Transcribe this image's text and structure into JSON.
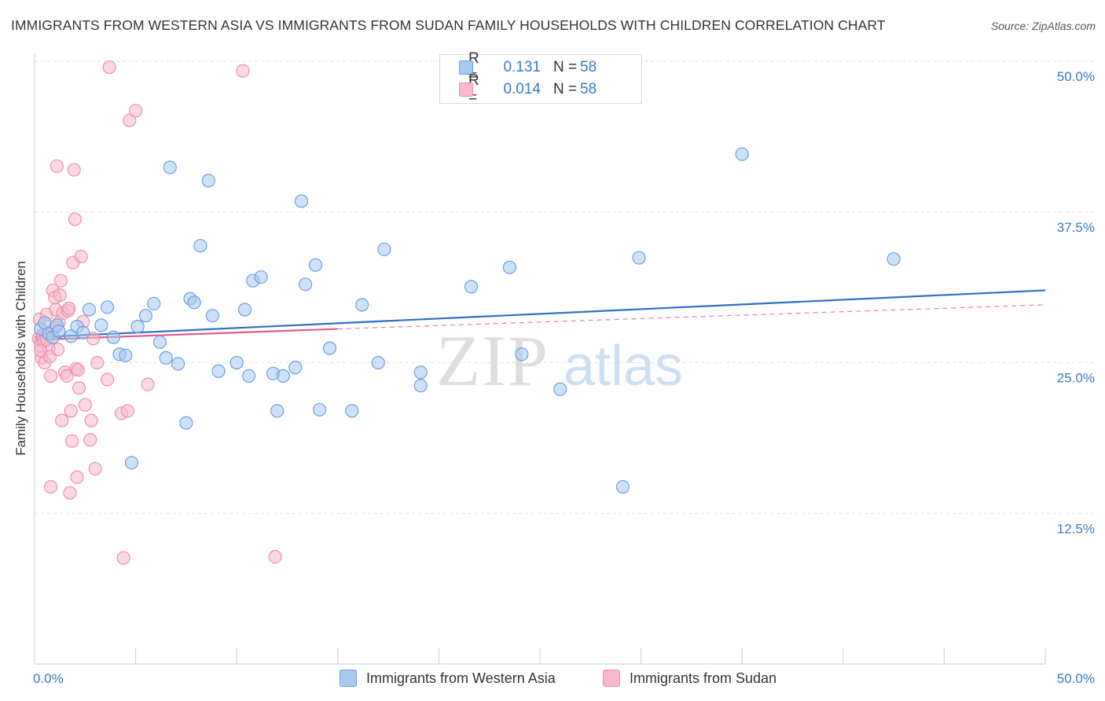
{
  "title": "IMMIGRANTS FROM WESTERN ASIA VS IMMIGRANTS FROM SUDAN FAMILY HOUSEHOLDS WITH CHILDREN CORRELATION CHART",
  "source": "Source: ZipAtlas.com",
  "watermark": {
    "zip": "ZIP",
    "atlas": "atlas"
  },
  "legend_top": {
    "rows": [
      {
        "r_label": "R =",
        "r_value": "0.131",
        "n_label": "N =",
        "n_value": "58"
      },
      {
        "r_label": "R =",
        "r_value": "0.014",
        "n_label": "N =",
        "n_value": "58"
      }
    ]
  },
  "colors": {
    "blue_fill": "#a8c8f0",
    "blue_stroke": "#6a9fe0",
    "blue_line": "#2f6fc8",
    "pink_fill": "#f7b8cb",
    "pink_stroke": "#ee8fab",
    "pink_line": "#e05c86",
    "tick_text": "#3a78c9",
    "grid": "#e2e2e2"
  },
  "chart_data": {
    "type": "scatter",
    "title": "IMMIGRANTS FROM WESTERN ASIA VS IMMIGRANTS FROM SUDAN FAMILY HOUSEHOLDS WITH CHILDREN CORRELATION CHART",
    "xlabel": "",
    "ylabel": "Family Households with Children",
    "xlim": [
      0,
      50
    ],
    "ylim": [
      0,
      50
    ],
    "x_tick_labels": [
      "0.0%",
      "50.0%"
    ],
    "y_ticks": [
      12.5,
      25.0,
      37.5,
      50.0
    ],
    "y_tick_labels": [
      "12.5%",
      "25.0%",
      "37.5%",
      "50.0%"
    ],
    "grid": true,
    "legend_placement": "bottom",
    "series": [
      {
        "name": "Immigrants from Western Asia",
        "color": "#a8c8f0",
        "points": [
          [
            0.3,
            27.8
          ],
          [
            0.5,
            28.3
          ],
          [
            0.7,
            27.4
          ],
          [
            0.9,
            27.1
          ],
          [
            1.1,
            28.1
          ],
          [
            1.2,
            27.6
          ],
          [
            1.8,
            27.2
          ],
          [
            2.1,
            28.0
          ],
          [
            2.4,
            27.5
          ],
          [
            2.7,
            29.4
          ],
          [
            3.3,
            28.1
          ],
          [
            3.6,
            29.6
          ],
          [
            3.9,
            27.1
          ],
          [
            4.2,
            25.7
          ],
          [
            4.5,
            25.6
          ],
          [
            4.8,
            16.7
          ],
          [
            5.1,
            28.0
          ],
          [
            5.5,
            28.9
          ],
          [
            5.9,
            29.9
          ],
          [
            6.2,
            26.7
          ],
          [
            6.5,
            25.4
          ],
          [
            6.7,
            41.2
          ],
          [
            7.1,
            24.9
          ],
          [
            7.5,
            20.0
          ],
          [
            7.7,
            30.3
          ],
          [
            7.9,
            30.0
          ],
          [
            8.2,
            34.7
          ],
          [
            8.6,
            40.1
          ],
          [
            8.8,
            28.9
          ],
          [
            9.1,
            24.3
          ],
          [
            10.0,
            25.0
          ],
          [
            10.4,
            29.4
          ],
          [
            10.6,
            23.9
          ],
          [
            10.8,
            31.8
          ],
          [
            11.2,
            32.1
          ],
          [
            11.8,
            24.1
          ],
          [
            12.0,
            21.0
          ],
          [
            12.3,
            23.9
          ],
          [
            12.9,
            24.6
          ],
          [
            13.2,
            38.4
          ],
          [
            13.4,
            31.5
          ],
          [
            13.9,
            33.1
          ],
          [
            14.1,
            21.1
          ],
          [
            14.6,
            26.2
          ],
          [
            15.7,
            21.0
          ],
          [
            16.2,
            29.8
          ],
          [
            17.3,
            34.4
          ],
          [
            17.0,
            25.0
          ],
          [
            19.1,
            24.2
          ],
          [
            19.1,
            23.1
          ],
          [
            21.6,
            31.3
          ],
          [
            23.5,
            32.9
          ],
          [
            24.1,
            25.7
          ],
          [
            26.0,
            22.8
          ],
          [
            29.1,
            14.7
          ],
          [
            29.9,
            33.7
          ],
          [
            35.0,
            42.3
          ],
          [
            42.5,
            33.6
          ]
        ],
        "trend": {
          "x": [
            0,
            50
          ],
          "y": [
            27.1,
            31.0
          ]
        }
      },
      {
        "name": "Immigrants from Sudan",
        "color": "#f7b8cb",
        "points": [
          [
            0.2,
            27.0
          ],
          [
            0.25,
            28.6
          ],
          [
            0.3,
            26.4
          ],
          [
            0.35,
            25.4
          ],
          [
            0.4,
            27.3
          ],
          [
            0.45,
            26.8
          ],
          [
            0.5,
            25.0
          ],
          [
            0.55,
            27.5
          ],
          [
            0.6,
            29.0
          ],
          [
            0.7,
            26.2
          ],
          [
            0.8,
            23.9
          ],
          [
            0.9,
            31.0
          ],
          [
            1.0,
            30.4
          ],
          [
            1.05,
            29.4
          ],
          [
            1.1,
            41.3
          ],
          [
            1.2,
            28.3
          ],
          [
            1.25,
            30.6
          ],
          [
            1.3,
            31.8
          ],
          [
            1.35,
            20.2
          ],
          [
            1.4,
            29.1
          ],
          [
            1.5,
            24.2
          ],
          [
            1.6,
            23.9
          ],
          [
            1.65,
            29.3
          ],
          [
            1.7,
            29.5
          ],
          [
            1.75,
            14.2
          ],
          [
            1.8,
            21.0
          ],
          [
            1.85,
            18.5
          ],
          [
            1.9,
            33.3
          ],
          [
            1.95,
            41.0
          ],
          [
            2.0,
            36.9
          ],
          [
            2.05,
            24.5
          ],
          [
            2.1,
            15.5
          ],
          [
            2.15,
            24.4
          ],
          [
            2.2,
            22.9
          ],
          [
            2.3,
            33.8
          ],
          [
            2.4,
            28.4
          ],
          [
            2.5,
            21.5
          ],
          [
            0.8,
            14.7
          ],
          [
            2.8,
            20.2
          ],
          [
            2.75,
            18.6
          ],
          [
            2.9,
            27.0
          ],
          [
            3.0,
            16.2
          ],
          [
            3.1,
            25.0
          ],
          [
            3.6,
            23.6
          ],
          [
            3.7,
            49.5
          ],
          [
            4.3,
            20.8
          ],
          [
            4.4,
            8.8
          ],
          [
            4.6,
            21.0
          ],
          [
            4.7,
            45.1
          ],
          [
            5.0,
            45.9
          ],
          [
            5.6,
            23.2
          ],
          [
            10.3,
            49.2
          ],
          [
            11.9,
            8.9
          ],
          [
            0.3,
            26.0
          ],
          [
            0.6,
            26.9
          ],
          [
            0.75,
            25.5
          ],
          [
            1.0,
            27.9
          ],
          [
            1.15,
            26.1
          ]
        ],
        "trend": {
          "x": [
            0,
            15
          ],
          "y": [
            26.9,
            27.8
          ]
        },
        "trend_extension": {
          "x": [
            15,
            50
          ],
          "y": [
            27.8,
            29.8
          ]
        }
      }
    ]
  },
  "legend_bottom": [
    {
      "label": "Immigrants from Western Asia",
      "color": "#a8c8f0"
    },
    {
      "label": "Immigrants from Sudan",
      "color": "#f7b8cb"
    }
  ]
}
